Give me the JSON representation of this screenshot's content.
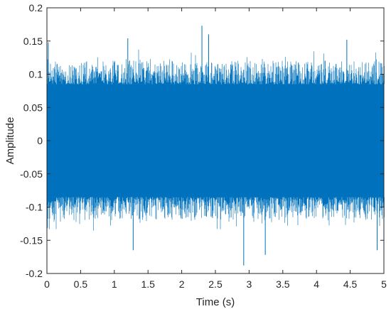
{
  "chart_data": {
    "type": "line",
    "title": "",
    "xlabel": "Time (s)",
    "ylabel": "Amplitude",
    "xlim": [
      0,
      5
    ],
    "ylim": [
      -0.2,
      0.2
    ],
    "grid": false,
    "legend": "none",
    "x_ticks": [
      "0",
      "0.5",
      "1",
      "1.5",
      "2",
      "2.5",
      "3",
      "3.5",
      "4",
      "4.5",
      "5"
    ],
    "y_ticks": [
      "-0.2",
      "-0.15",
      "-0.1",
      "-0.05",
      "0",
      "0.05",
      "0.1",
      "0.15",
      "0.2"
    ],
    "series": [
      {
        "color": "#0072BD",
        "description_values": {
          "core_envelope": [
            -0.085,
            0.085
          ],
          "typical_peak_range": [
            -0.12,
            0.12
          ],
          "peaks": [
            {
              "x": 0.02,
              "y": 0.148
            },
            {
              "x": 2.3,
              "y": 0.173
            },
            {
              "x": 2.92,
              "y": -0.188
            },
            {
              "x": 1.28,
              "y": -0.165
            },
            {
              "x": 3.24,
              "y": -0.172
            },
            {
              "x": 4.9,
              "y": -0.165
            },
            {
              "x": 1.2,
              "y": 0.154
            },
            {
              "x": 2.4,
              "y": 0.16
            },
            {
              "x": 4.45,
              "y": 0.152
            }
          ]
        }
      }
    ]
  }
}
